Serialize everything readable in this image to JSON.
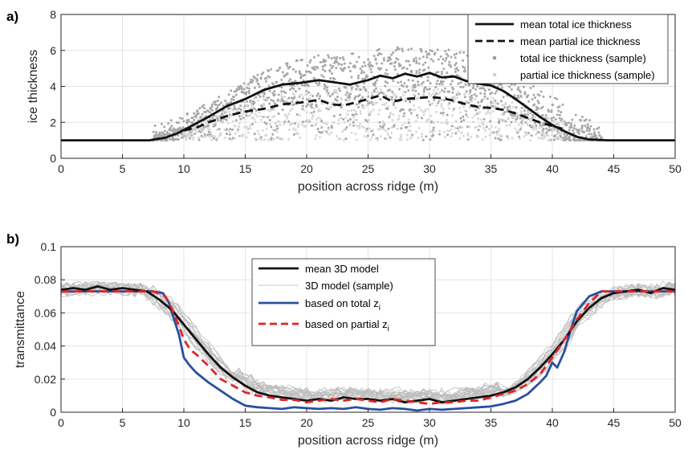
{
  "chart_data": [
    {
      "panel_label": "a)",
      "type": "line",
      "xlabel": "position across ridge (m)",
      "ylabel": "ice thickness",
      "xlim": [
        0,
        50
      ],
      "ylim": [
        0,
        8
      ],
      "xticks": [
        0,
        5,
        10,
        15,
        20,
        25,
        30,
        35,
        40,
        45,
        50
      ],
      "yticks": [
        0,
        2,
        4,
        6,
        8
      ],
      "grid": true,
      "legend_position": "top-right",
      "legend": [
        "mean total ice thickness",
        "mean partial ice thickness",
        "total ice thickness (sample)",
        "partial ice thickness (sample)"
      ],
      "series": [
        {
          "name": "mean total ice thickness",
          "style": "solid",
          "color": "#111111",
          "points": [
            [
              0,
              1
            ],
            [
              7.2,
              1
            ],
            [
              8.5,
              1.15
            ],
            [
              9.5,
              1.4
            ],
            [
              10.5,
              1.75
            ],
            [
              12,
              2.3
            ],
            [
              13.5,
              2.9
            ],
            [
              15,
              3.3
            ],
            [
              16.5,
              3.8
            ],
            [
              18,
              4.1
            ],
            [
              19.5,
              4.2
            ],
            [
              21,
              4.35
            ],
            [
              22,
              4.25
            ],
            [
              23.5,
              4.1
            ],
            [
              25,
              4.35
            ],
            [
              26,
              4.6
            ],
            [
              27,
              4.45
            ],
            [
              28,
              4.7
            ],
            [
              29,
              4.55
            ],
            [
              30,
              4.75
            ],
            [
              31,
              4.5
            ],
            [
              32,
              4.55
            ],
            [
              33,
              4.3
            ],
            [
              34,
              4.15
            ],
            [
              35,
              4.05
            ],
            [
              36,
              3.75
            ],
            [
              37,
              3.3
            ],
            [
              38,
              2.8
            ],
            [
              39,
              2.3
            ],
            [
              40,
              1.85
            ],
            [
              41,
              1.5
            ],
            [
              42,
              1.2
            ],
            [
              43,
              1.05
            ],
            [
              44.5,
              1
            ],
            [
              50,
              1
            ]
          ]
        },
        {
          "name": "mean partial ice thickness",
          "style": "dashed",
          "color": "#111111",
          "points": [
            [
              10,
              1.55
            ],
            [
              11,
              1.7
            ],
            [
              12,
              2
            ],
            [
              13.5,
              2.35
            ],
            [
              15,
              2.6
            ],
            [
              16.5,
              2.75
            ],
            [
              18,
              3
            ],
            [
              19.5,
              3.1
            ],
            [
              21,
              3.25
            ],
            [
              22,
              3
            ],
            [
              23,
              2.95
            ],
            [
              24,
              3.1
            ],
            [
              25,
              3.3
            ],
            [
              26,
              3.5
            ],
            [
              27,
              3.15
            ],
            [
              28,
              3.3
            ],
            [
              29,
              3.35
            ],
            [
              30,
              3.4
            ],
            [
              31,
              3.35
            ],
            [
              32,
              3.2
            ],
            [
              33,
              3
            ],
            [
              34,
              2.85
            ],
            [
              35,
              2.8
            ],
            [
              36,
              2.7
            ],
            [
              37,
              2.5
            ],
            [
              38,
              2.25
            ],
            [
              39,
              2
            ],
            [
              40,
              1.8
            ],
            [
              40.8,
              1.65
            ]
          ]
        }
      ],
      "sample_series": [
        {
          "name": "total ice thickness (sample)",
          "color": "#a8a8a8",
          "x_range": [
            7.5,
            44
          ],
          "envelope_max": [
            [
              7.5,
              1.8
            ],
            [
              10,
              2.4
            ],
            [
              12,
              3.2
            ],
            [
              14,
              3.8
            ],
            [
              16,
              4.7
            ],
            [
              18,
              5.2
            ],
            [
              20,
              5.6
            ],
            [
              22,
              5.9
            ],
            [
              24,
              5.9
            ],
            [
              26,
              6.1
            ],
            [
              28,
              6.2
            ],
            [
              30,
              6.0
            ],
            [
              32,
              6.1
            ],
            [
              34,
              5.6
            ],
            [
              36,
              5.3
            ],
            [
              38,
              4.5
            ],
            [
              40,
              3.5
            ],
            [
              42,
              2.5
            ],
            [
              44,
              1.8
            ]
          ]
        },
        {
          "name": "partial ice thickness (sample)",
          "color": "#d9d9d9",
          "x_range": [
            10,
            41
          ],
          "envelope_max": [
            [
              10,
              1.8
            ],
            [
              13,
              2.6
            ],
            [
              16,
              3.4
            ],
            [
              20,
              3.8
            ],
            [
              25,
              3.9
            ],
            [
              30,
              3.9
            ],
            [
              35,
              3.5
            ],
            [
              38,
              2.8
            ],
            [
              41,
              2
            ]
          ]
        }
      ]
    },
    {
      "panel_label": "b)",
      "type": "line",
      "xlabel": "position across ridge (m)",
      "ylabel": "transmittance",
      "xlim": [
        0,
        50
      ],
      "ylim": [
        0,
        0.1
      ],
      "xticks": [
        0,
        5,
        10,
        15,
        20,
        25,
        30,
        35,
        40,
        45,
        50
      ],
      "yticks": [
        0,
        0.02,
        0.04,
        0.06,
        0.08,
        0.1
      ],
      "ytick_labels": [
        "0",
        "0.02",
        "0.04",
        "0.06",
        "0.08",
        "0.1"
      ],
      "grid": true,
      "legend_position": "top-center",
      "legend": [
        {
          "text": "mean 3D model",
          "sub": ""
        },
        {
          "text": "3D model (sample)",
          "sub": ""
        },
        {
          "text": "based on total z",
          "sub": "i"
        },
        {
          "text": "based on partial z",
          "sub": "i"
        }
      ],
      "series": [
        {
          "name": "mean 3D model",
          "style": "solid",
          "color": "#111111",
          "points": [
            [
              0,
              0.074
            ],
            [
              1,
              0.075
            ],
            [
              2,
              0.074
            ],
            [
              3,
              0.076
            ],
            [
              4,
              0.074
            ],
            [
              5,
              0.075
            ],
            [
              6,
              0.074
            ],
            [
              7,
              0.073
            ],
            [
              8,
              0.068
            ],
            [
              9,
              0.062
            ],
            [
              10,
              0.053
            ],
            [
              11,
              0.044
            ],
            [
              12,
              0.035
            ],
            [
              13,
              0.027
            ],
            [
              14,
              0.021
            ],
            [
              15,
              0.016
            ],
            [
              16,
              0.012
            ],
            [
              17,
              0.01
            ],
            [
              18,
              0.009
            ],
            [
              19,
              0.008
            ],
            [
              20,
              0.007
            ],
            [
              21,
              0.008
            ],
            [
              22,
              0.007
            ],
            [
              23,
              0.009
            ],
            [
              24,
              0.008
            ],
            [
              25,
              0.008
            ],
            [
              26,
              0.007
            ],
            [
              27,
              0.008
            ],
            [
              28,
              0.006
            ],
            [
              29,
              0.007
            ],
            [
              30,
              0.008
            ],
            [
              31,
              0.006
            ],
            [
              32,
              0.007
            ],
            [
              33,
              0.008
            ],
            [
              34,
              0.009
            ],
            [
              35,
              0.01
            ],
            [
              36,
              0.012
            ],
            [
              37,
              0.015
            ],
            [
              38,
              0.02
            ],
            [
              39,
              0.027
            ],
            [
              40,
              0.035
            ],
            [
              41,
              0.044
            ],
            [
              42,
              0.055
            ],
            [
              43,
              0.063
            ],
            [
              44,
              0.069
            ],
            [
              45,
              0.072
            ],
            [
              46,
              0.073
            ],
            [
              47,
              0.074
            ],
            [
              48,
              0.072
            ],
            [
              49,
              0.075
            ],
            [
              50,
              0.074
            ]
          ]
        },
        {
          "name": "based on total z",
          "style": "solid",
          "color": "#2a4f9f",
          "points": [
            [
              0,
              0.073
            ],
            [
              7.5,
              0.073
            ],
            [
              8.3,
              0.072
            ],
            [
              8.8,
              0.066
            ],
            [
              9.2,
              0.056
            ],
            [
              9.6,
              0.047
            ],
            [
              10,
              0.033
            ],
            [
              10.5,
              0.028
            ],
            [
              11,
              0.024
            ],
            [
              12,
              0.018
            ],
            [
              13,
              0.013
            ],
            [
              14,
              0.008
            ],
            [
              15,
              0.004
            ],
            [
              16,
              0.003
            ],
            [
              17,
              0.0025
            ],
            [
              18,
              0.002
            ],
            [
              19,
              0.003
            ],
            [
              20,
              0.0025
            ],
            [
              21,
              0.002
            ],
            [
              22,
              0.0025
            ],
            [
              23,
              0.002
            ],
            [
              24,
              0.003
            ],
            [
              25,
              0.002
            ],
            [
              26,
              0.0015
            ],
            [
              27,
              0.0025
            ],
            [
              28,
              0.002
            ],
            [
              29,
              0.001
            ],
            [
              30,
              0.002
            ],
            [
              31,
              0.0015
            ],
            [
              32,
              0.002
            ],
            [
              33,
              0.0025
            ],
            [
              34,
              0.003
            ],
            [
              35,
              0.0035
            ],
            [
              36,
              0.005
            ],
            [
              37,
              0.007
            ],
            [
              38,
              0.011
            ],
            [
              39,
              0.018
            ],
            [
              39.5,
              0.022
            ],
            [
              40,
              0.03
            ],
            [
              40.4,
              0.027
            ],
            [
              41,
              0.037
            ],
            [
              41.5,
              0.05
            ],
            [
              42,
              0.061
            ],
            [
              43,
              0.07
            ],
            [
              44,
              0.073
            ],
            [
              50,
              0.073
            ]
          ]
        },
        {
          "name": "based on partial z",
          "style": "dashed",
          "color": "#e02525",
          "points": [
            [
              0,
              0.073
            ],
            [
              7.5,
              0.073
            ],
            [
              8.5,
              0.07
            ],
            [
              9,
              0.063
            ],
            [
              9.5,
              0.054
            ],
            [
              10,
              0.044
            ],
            [
              10.5,
              0.038
            ],
            [
              11,
              0.035
            ],
            [
              12,
              0.028
            ],
            [
              13,
              0.02
            ],
            [
              14,
              0.016
            ],
            [
              15,
              0.012
            ],
            [
              16,
              0.01
            ],
            [
              17,
              0.009
            ],
            [
              18,
              0.0075
            ],
            [
              19,
              0.0075
            ],
            [
              20,
              0.006
            ],
            [
              21,
              0.007
            ],
            [
              22,
              0.008
            ],
            [
              23,
              0.007
            ],
            [
              24,
              0.008
            ],
            [
              25,
              0.007
            ],
            [
              26,
              0.006
            ],
            [
              27,
              0.008
            ],
            [
              28,
              0.007
            ],
            [
              29,
              0.006
            ],
            [
              30,
              0.005
            ],
            [
              31,
              0.006
            ],
            [
              32,
              0.006
            ],
            [
              33,
              0.007
            ],
            [
              34,
              0.007
            ],
            [
              35,
              0.009
            ],
            [
              36,
              0.011
            ],
            [
              37,
              0.013
            ],
            [
              38,
              0.017
            ],
            [
              39,
              0.023
            ],
            [
              40,
              0.033
            ],
            [
              41,
              0.044
            ],
            [
              42,
              0.056
            ],
            [
              43,
              0.066
            ],
            [
              44,
              0.073
            ],
            [
              50,
              0.073
            ]
          ]
        }
      ],
      "sample_series": [
        {
          "name": "3D model (sample)",
          "color": "#bdbdbd",
          "count": 20
        }
      ]
    }
  ]
}
